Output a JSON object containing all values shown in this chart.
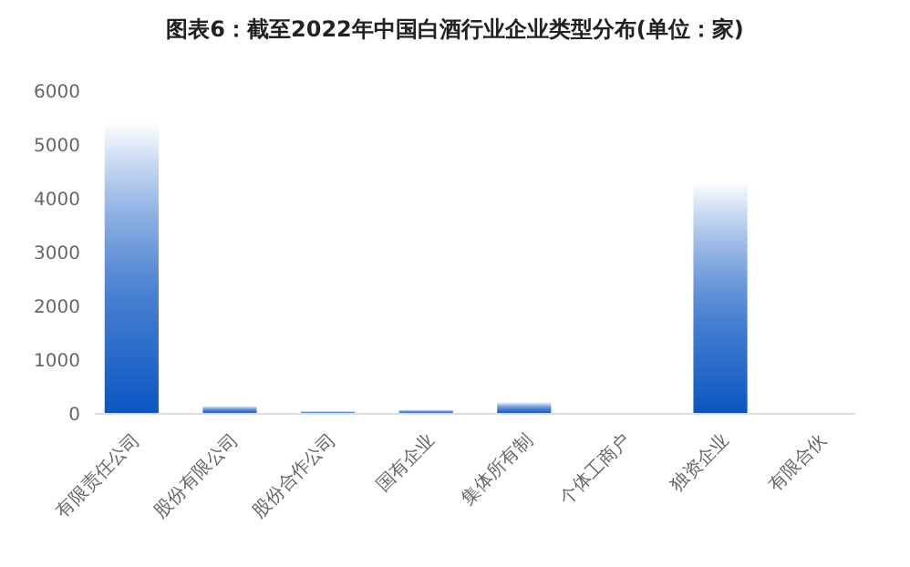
{
  "chart_data": {
    "type": "bar",
    "title": "图表6：截至2022年中国白酒行业企业类型分布(单位：家)",
    "categories": [
      "有限责任公司",
      "股份有限公司",
      "股份合作公司",
      "国有企业",
      "集体所有制",
      "个体工商户",
      "独资企业",
      "有限合伙"
    ],
    "values": [
      5430,
      150,
      50,
      80,
      220,
      0,
      4330,
      0
    ],
    "color": "#0a55c2",
    "ylim": [
      0,
      6000
    ],
    "yticks": [
      0,
      1000,
      2000,
      3000,
      4000,
      5000,
      6000
    ],
    "grid": false
  }
}
